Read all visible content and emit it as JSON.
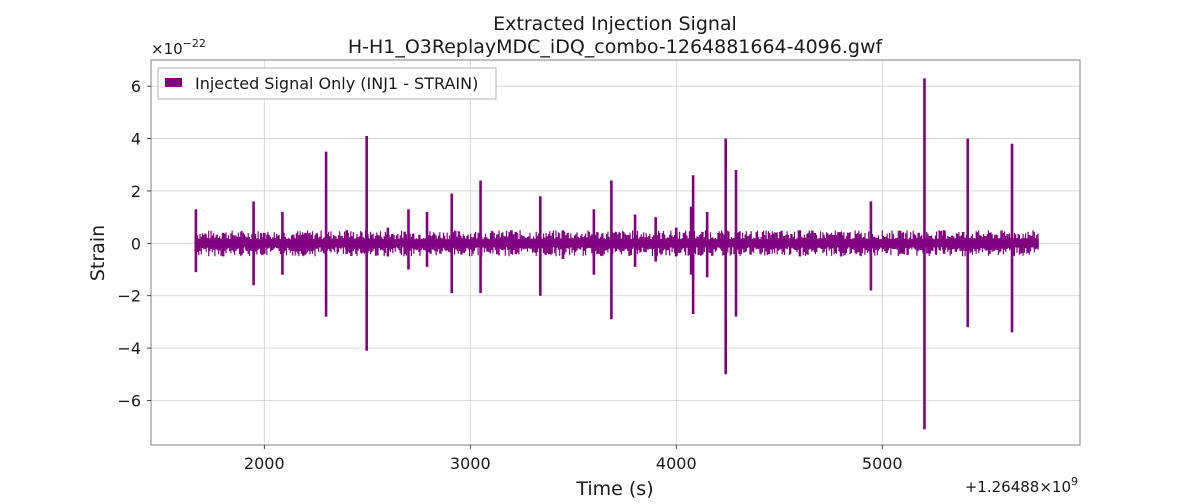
{
  "chart_data": {
    "type": "line",
    "title": "Extracted Injection Signal",
    "subtitle": "H-H1_O3ReplayMDC_iDQ_combo-1264881664-4096.gwf",
    "xlabel": "Time (s)",
    "ylabel": "Strain",
    "y_multiplier_label": "×10",
    "y_multiplier_exponent": "−22",
    "x_offset_label": "+1.26488×10",
    "x_offset_exponent": "9",
    "xlim": [
      1450,
      5960
    ],
    "ylim": [
      -7.7,
      7.0
    ],
    "x_ticks": [
      2000,
      3000,
      4000,
      5000
    ],
    "x_tick_labels": [
      "2000",
      "3000",
      "4000",
      "5000"
    ],
    "y_ticks": [
      6,
      4,
      2,
      0,
      -2,
      -4,
      -6
    ],
    "y_tick_labels": [
      "6",
      "4",
      "2",
      "0",
      "−2",
      "−4",
      "−6"
    ],
    "grid": true,
    "legend_position": "top-left",
    "data_range_x": [
      1664,
      5760
    ],
    "baseline_band": [
      -0.15,
      0.15
    ],
    "series": [
      {
        "name": "Injected Signal Only (INJ1 - STRAIN)",
        "color": "#800080",
        "spikes": [
          {
            "x": 1668,
            "max": 1.3,
            "min": -1.1
          },
          {
            "x": 1800,
            "max": 0.4,
            "min": -0.5
          },
          {
            "x": 1948,
            "max": 1.6,
            "min": -1.6
          },
          {
            "x": 2000,
            "max": 0.4,
            "min": -0.4
          },
          {
            "x": 2088,
            "max": 1.2,
            "min": -1.2
          },
          {
            "x": 2200,
            "max": 0.4,
            "min": -0.4
          },
          {
            "x": 2300,
            "max": 3.5,
            "min": -2.8
          },
          {
            "x": 2400,
            "max": 0.5,
            "min": -0.4
          },
          {
            "x": 2497,
            "max": 4.1,
            "min": -4.1
          },
          {
            "x": 2600,
            "max": 0.6,
            "min": -0.5
          },
          {
            "x": 2700,
            "max": 1.3,
            "min": -1.0
          },
          {
            "x": 2790,
            "max": 1.2,
            "min": -0.9
          },
          {
            "x": 2910,
            "max": 1.9,
            "min": -1.9
          },
          {
            "x": 3050,
            "max": 2.4,
            "min": -1.9
          },
          {
            "x": 3200,
            "max": 0.5,
            "min": -0.4
          },
          {
            "x": 3340,
            "max": 1.8,
            "min": -2.0
          },
          {
            "x": 3450,
            "max": 0.5,
            "min": -0.6
          },
          {
            "x": 3600,
            "max": 1.3,
            "min": -1.2
          },
          {
            "x": 3685,
            "max": 2.4,
            "min": -2.9
          },
          {
            "x": 3800,
            "max": 1.1,
            "min": -0.9
          },
          {
            "x": 3900,
            "max": 1.0,
            "min": -0.7
          },
          {
            "x": 4000,
            "max": 0.6,
            "min": -0.5
          },
          {
            "x": 4072,
            "max": 1.4,
            "min": -1.2
          },
          {
            "x": 4082,
            "max": 2.6,
            "min": -2.7
          },
          {
            "x": 4150,
            "max": 1.2,
            "min": -1.3
          },
          {
            "x": 4240,
            "max": 4.0,
            "min": -5.0
          },
          {
            "x": 4290,
            "max": 2.8,
            "min": -2.8
          },
          {
            "x": 4450,
            "max": 0.4,
            "min": -0.4
          },
          {
            "x": 4600,
            "max": 0.5,
            "min": -0.5
          },
          {
            "x": 4800,
            "max": 0.4,
            "min": -0.5
          },
          {
            "x": 4945,
            "max": 1.6,
            "min": -1.8
          },
          {
            "x": 5100,
            "max": 0.4,
            "min": -0.4
          },
          {
            "x": 5205,
            "max": 6.3,
            "min": -7.1
          },
          {
            "x": 5300,
            "max": 0.5,
            "min": -0.4
          },
          {
            "x": 5415,
            "max": 4.0,
            "min": -3.2
          },
          {
            "x": 5520,
            "max": 0.4,
            "min": -0.4
          },
          {
            "x": 5630,
            "max": 3.8,
            "min": -3.4
          }
        ]
      }
    ]
  }
}
